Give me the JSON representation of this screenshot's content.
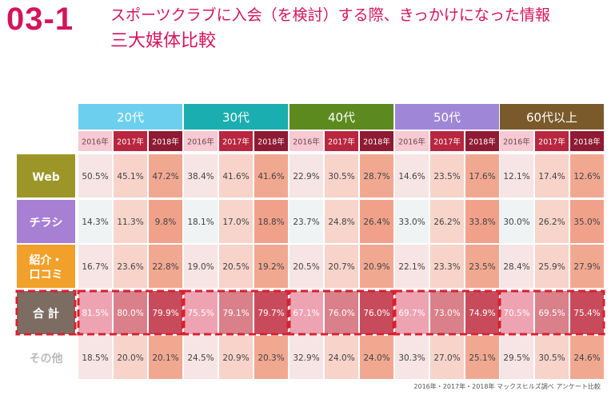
{
  "heading": {
    "number": "03-1",
    "title_line1": "スポーツクラブに入会（を検討）する際、きっかけになった情報",
    "title_line2": "三大媒体比較"
  },
  "footnote": "2016年・2017年・2018年 マックスヒルズ調べ アンケート比較",
  "chart_data": {
    "type": "table",
    "years": [
      "2016年",
      "2017年",
      "2018年"
    ],
    "groups": [
      {
        "label": "20代",
        "color": "#6ccfee"
      },
      {
        "label": "30代",
        "color": "#1aaeb0"
      },
      {
        "label": "40代",
        "color": "#5c8a1e"
      },
      {
        "label": "50代",
        "color": "#9f86d6"
      },
      {
        "label": "60代以上",
        "color": "#7a5a2a"
      }
    ],
    "rows": [
      {
        "label": "Web",
        "color": "#9c9628",
        "values": [
          "50.5%",
          "45.1%",
          "47.2%",
          "38.4%",
          "41.6%",
          "41.6%",
          "22.9%",
          "30.5%",
          "28.7%",
          "14.6%",
          "23.5%",
          "17.6%",
          "12.1%",
          "17.4%",
          "12.6%"
        ]
      },
      {
        "label": "チラシ",
        "color": "#a77fd3",
        "values": [
          "14.3%",
          "11.3%",
          "9.8%",
          "18.1%",
          "17.0%",
          "18.8%",
          "23.7%",
          "24.8%",
          "26.4%",
          "33.0%",
          "26.2%",
          "33.8%",
          "30.0%",
          "26.2%",
          "35.0%"
        ]
      },
      {
        "label": "紹介・\n口コミ",
        "color": "#f1a02a",
        "values": [
          "16.7%",
          "23.6%",
          "22.8%",
          "19.0%",
          "20.5%",
          "19.2%",
          "20.5%",
          "20.7%",
          "20.9%",
          "22.1%",
          "23.3%",
          "23.5%",
          "28.4%",
          "25.9%",
          "27.9%"
        ]
      },
      {
        "label": "合 計",
        "color": "#7d6c62",
        "highlight": true,
        "values": [
          "81.5%",
          "80.0%",
          "79.9%",
          "75.5%",
          "79.1%",
          "79.7%",
          "67.1%",
          "76.0%",
          "76.0%",
          "69.7%",
          "73.0%",
          "74.9%",
          "70.5%",
          "69.5%",
          "75.4%"
        ]
      },
      {
        "label": "その他",
        "color": "#ffffff",
        "values": [
          "18.5%",
          "20.0%",
          "20.1%",
          "24.5%",
          "20.9%",
          "20.3%",
          "32.9%",
          "24.0%",
          "24.0%",
          "30.3%",
          "27.0%",
          "25.1%",
          "29.5%",
          "30.5%",
          "24.6%"
        ]
      }
    ]
  }
}
